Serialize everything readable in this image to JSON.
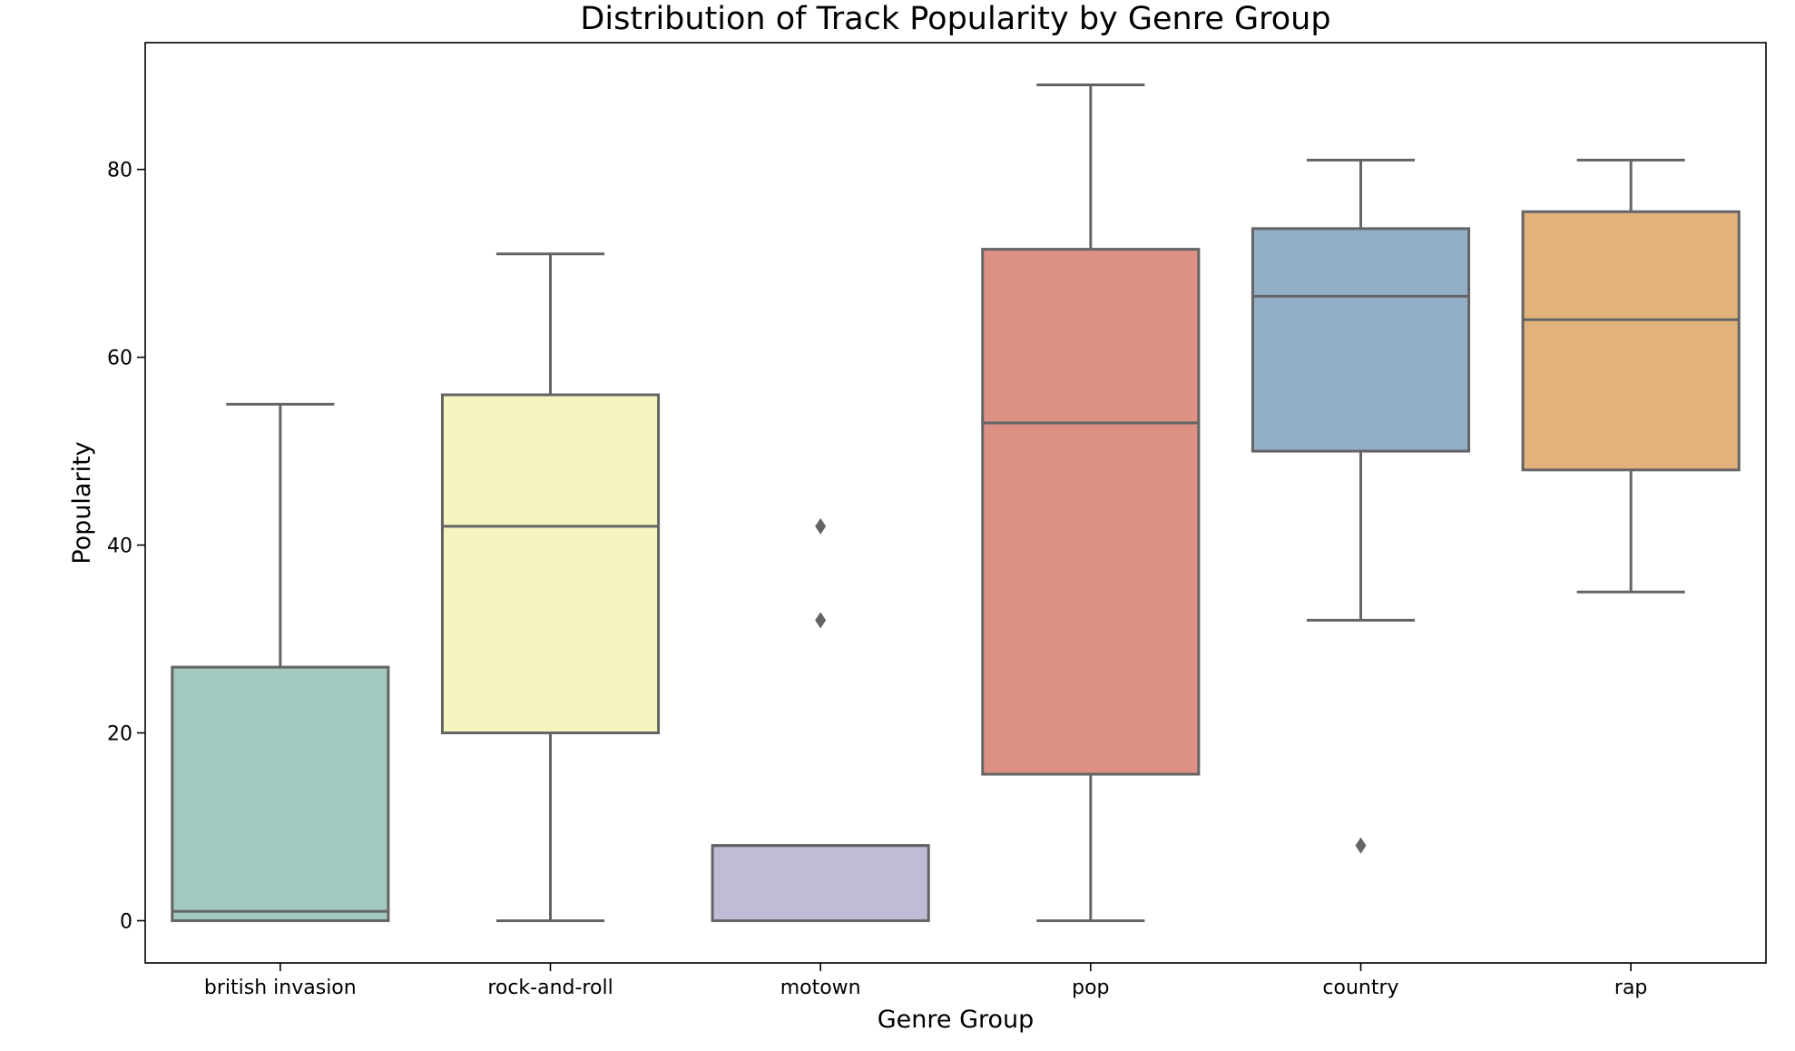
{
  "chart_data": {
    "type": "box",
    "title": "Distribution of Track Popularity by Genre Group",
    "xlabel": "Genre Group",
    "ylabel": "Popularity",
    "ylim": [
      -4.5,
      93.5
    ],
    "yticks": [
      0,
      20,
      40,
      60,
      80
    ],
    "grid": false,
    "categories": [
      "british invasion",
      "rock-and-roll",
      "motown",
      "pop",
      "country",
      "rap"
    ],
    "boxes": [
      {
        "category": "british invasion",
        "whisker_low": 0,
        "q1": 0,
        "median": 1,
        "q3": 27,
        "whisker_high": 55,
        "outliers": [],
        "color": "#a1c9c0"
      },
      {
        "category": "rock-and-roll",
        "whisker_low": 0,
        "q1": 20,
        "median": 42,
        "q3": 56,
        "whisker_high": 71,
        "outliers": [],
        "color": "#f6f5bf"
      },
      {
        "category": "motown",
        "whisker_low": 0,
        "q1": 0,
        "median": 8,
        "q3": 8,
        "whisker_high": 8,
        "outliers": [
          32,
          42
        ],
        "color": "#bfbdd6"
      },
      {
        "category": "pop",
        "whisker_low": 0,
        "q1": 15.6,
        "median": 53,
        "q3": 71.5,
        "whisker_high": 89,
        "outliers": [],
        "color": "#dd9185"
      },
      {
        "category": "country",
        "whisker_low": 32,
        "q1": 50,
        "median": 66.5,
        "q3": 73.7,
        "whisker_high": 81,
        "outliers": [
          8
        ],
        "color": "#92adc6"
      },
      {
        "category": "rap",
        "whisker_low": 35,
        "q1": 48,
        "median": 64,
        "q3": 75.5,
        "whisker_high": 81,
        "outliers": [],
        "color": "#e1b27b"
      }
    ]
  }
}
